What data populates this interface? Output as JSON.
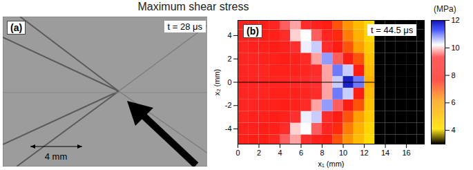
{
  "title": "Maximum shear stress",
  "image_panel": {
    "label": "(a)",
    "time": "t = 28 μs",
    "scale_bar": "4 mm"
  },
  "chart_data": {
    "type": "heatmap",
    "label": "(b)",
    "annotation": "t = 44.5 μs",
    "x_label": "x₁ (mm)",
    "y_label": "x₂ (mm)",
    "x": [
      0.5,
      1.5,
      2.5,
      3.5,
      4.5,
      5.5,
      6.5,
      7.5,
      8.5,
      9.5,
      10.5,
      11.5,
      12.5,
      13.5,
      14.5,
      15.5,
      16.5,
      17.5
    ],
    "y": [
      -5,
      -4,
      -3,
      -2,
      -1,
      0,
      1,
      2,
      3,
      4,
      5
    ],
    "values": [
      [
        8.2,
        8,
        8,
        8.5,
        9.5,
        9.8,
        9,
        8.3,
        7.8,
        7,
        6.2,
        5.2,
        4.3,
        3,
        3,
        3,
        3,
        3
      ],
      [
        8.3,
        8.2,
        8,
        8.2,
        9,
        10,
        10.2,
        9.5,
        8.5,
        7.5,
        6.5,
        5.5,
        4.5,
        3,
        3,
        3,
        3,
        3
      ],
      [
        8.5,
        8.3,
        8.2,
        8,
        8.3,
        9.2,
        10.3,
        10.5,
        9,
        7.8,
        7,
        6,
        4.8,
        3,
        3,
        3,
        3,
        3
      ],
      [
        8.5,
        8.5,
        8.3,
        8.2,
        8,
        8.2,
        8.8,
        9.8,
        10.8,
        9.5,
        7.8,
        7,
        5,
        3,
        3,
        3,
        3,
        3
      ],
      [
        8.5,
        8.5,
        8.5,
        8.3,
        8.2,
        8.3,
        8.5,
        9,
        9.8,
        11,
        10.5,
        7.8,
        5.2,
        3,
        3,
        3,
        3,
        3
      ],
      [
        8.5,
        8.5,
        8.5,
        8.5,
        8.5,
        8.8,
        9,
        9.3,
        9.8,
        10.5,
        11.8,
        11,
        5.5,
        3,
        3,
        3,
        3,
        3
      ],
      [
        8.5,
        8.5,
        8.5,
        8.3,
        8.2,
        8.3,
        8.5,
        9,
        9.8,
        11,
        10.5,
        7.8,
        5.2,
        3,
        3,
        3,
        3,
        3
      ],
      [
        8.5,
        8.5,
        8.3,
        8.2,
        8,
        8.2,
        8.8,
        9.8,
        10.8,
        9.5,
        7.8,
        7,
        5,
        3,
        3,
        3,
        3,
        3
      ],
      [
        8.5,
        8.3,
        8.2,
        8,
        8.3,
        9.2,
        10.3,
        10.5,
        9,
        7.8,
        7,
        6,
        4.8,
        3,
        3,
        3,
        3,
        3
      ],
      [
        8.3,
        8.2,
        8,
        8.2,
        9,
        10,
        10.2,
        9.5,
        8.5,
        7.5,
        6.5,
        5.5,
        4.5,
        3,
        3,
        3,
        3,
        3
      ],
      [
        8.2,
        8,
        8,
        8.5,
        9.5,
        9.8,
        9,
        8.3,
        7.8,
        7,
        6.2,
        5.2,
        4.3,
        3,
        3,
        3,
        3,
        3
      ]
    ],
    "xlim": [
      0,
      17.7
    ],
    "xticks": [
      0,
      2,
      4,
      6,
      8,
      10,
      12,
      14,
      16
    ],
    "ylim": [
      -5.3,
      5.3
    ],
    "yticks": [
      -4,
      -2,
      0,
      2,
      4
    ],
    "reference_line": 0,
    "colorbar": {
      "label": "(MPa)",
      "range": [
        3,
        12
      ],
      "ticks": [
        4,
        6,
        8,
        10,
        12
      ]
    }
  }
}
